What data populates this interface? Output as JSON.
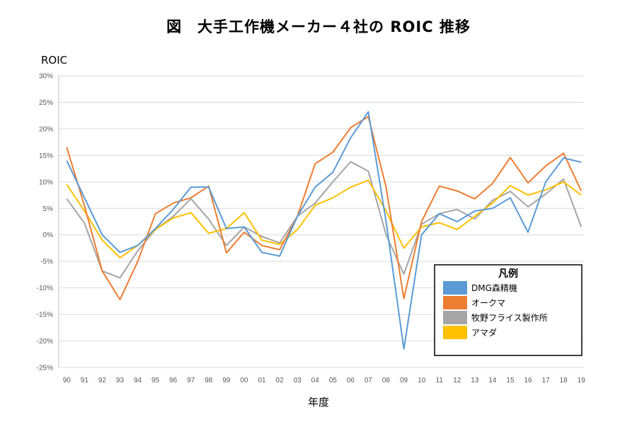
{
  "page": {
    "title": "図　大手工作機メーカー４社の ROIC 推移"
  },
  "chart_data": {
    "type": "line",
    "title": "図　大手工作機メーカー４社の ROIC 推移",
    "ylabel": "ROIC",
    "xlabel": "年度",
    "ylim": [
      -25,
      30
    ],
    "yticks": [
      30,
      25,
      20,
      15,
      10,
      5,
      0,
      -5,
      -10,
      -15,
      -20,
      -25
    ],
    "ytick_labels": [
      "30%",
      "25%",
      "20%",
      "15%",
      "10%",
      "5%",
      "0%",
      "-5%",
      "-10%",
      "-15%",
      "-20%",
      "-25%"
    ],
    "grid": true,
    "legend_title": "凡例",
    "legend_position": "bottom-right",
    "categories": [
      "90",
      "91",
      "92",
      "93",
      "94",
      "95",
      "96",
      "97",
      "98",
      "99",
      "00",
      "01",
      "02",
      "03",
      "04",
      "05",
      "06",
      "07",
      "08",
      "09",
      "10",
      "11",
      "12",
      "13",
      "14",
      "15",
      "16",
      "17",
      "18",
      "19"
    ],
    "series": [
      {
        "name": "DMG森精機",
        "color": "#5b9bd5",
        "values": [
          14.0,
          7.0,
          0.0,
          -3.3,
          -2.0,
          1.2,
          4.8,
          9.0,
          9.0,
          1.2,
          1.5,
          -3.3,
          -4.0,
          3.5,
          9.0,
          11.8,
          18.3,
          23.2,
          2.5,
          -21.5,
          0.0,
          4.0,
          2.5,
          4.5,
          5.0,
          7.0,
          0.5,
          10.0,
          14.5,
          13.7
        ]
      },
      {
        "name": "オークマ",
        "color": "#ed7d31",
        "values": [
          16.5,
          5.5,
          -6.8,
          -12.2,
          -5.0,
          4.0,
          6.0,
          7.0,
          9.2,
          -3.4,
          0.5,
          -2.0,
          -2.8,
          3.5,
          13.4,
          15.6,
          20.2,
          22.3,
          9.0,
          -12.0,
          2.5,
          9.2,
          8.3,
          6.8,
          9.7,
          14.6,
          9.8,
          13.0,
          15.4,
          8.3
        ]
      },
      {
        "name": "牧野フライス製作所",
        "color": "#a5a5a5",
        "values": [
          6.8,
          2.2,
          -6.8,
          -8.1,
          -3.0,
          1.0,
          3.5,
          6.8,
          3.0,
          -2.0,
          1.5,
          -0.3,
          -1.5,
          3.5,
          6.0,
          10.0,
          13.8,
          12.0,
          0.0,
          -7.4,
          2.0,
          4.0,
          4.8,
          3.0,
          6.5,
          8.2,
          5.3,
          7.7,
          10.5,
          1.5
        ]
      },
      {
        "name": "アマダ",
        "color": "#ffc000",
        "values": [
          9.5,
          4.5,
          -1.0,
          -4.3,
          -2.0,
          1.0,
          3.2,
          4.2,
          0.3,
          1.2,
          4.2,
          -1.0,
          -1.8,
          1.0,
          5.6,
          7.0,
          9.0,
          10.3,
          4.5,
          -2.5,
          1.5,
          2.3,
          1.0,
          3.5,
          6.0,
          9.3,
          7.5,
          8.5,
          10.0,
          7.5
        ]
      }
    ]
  }
}
